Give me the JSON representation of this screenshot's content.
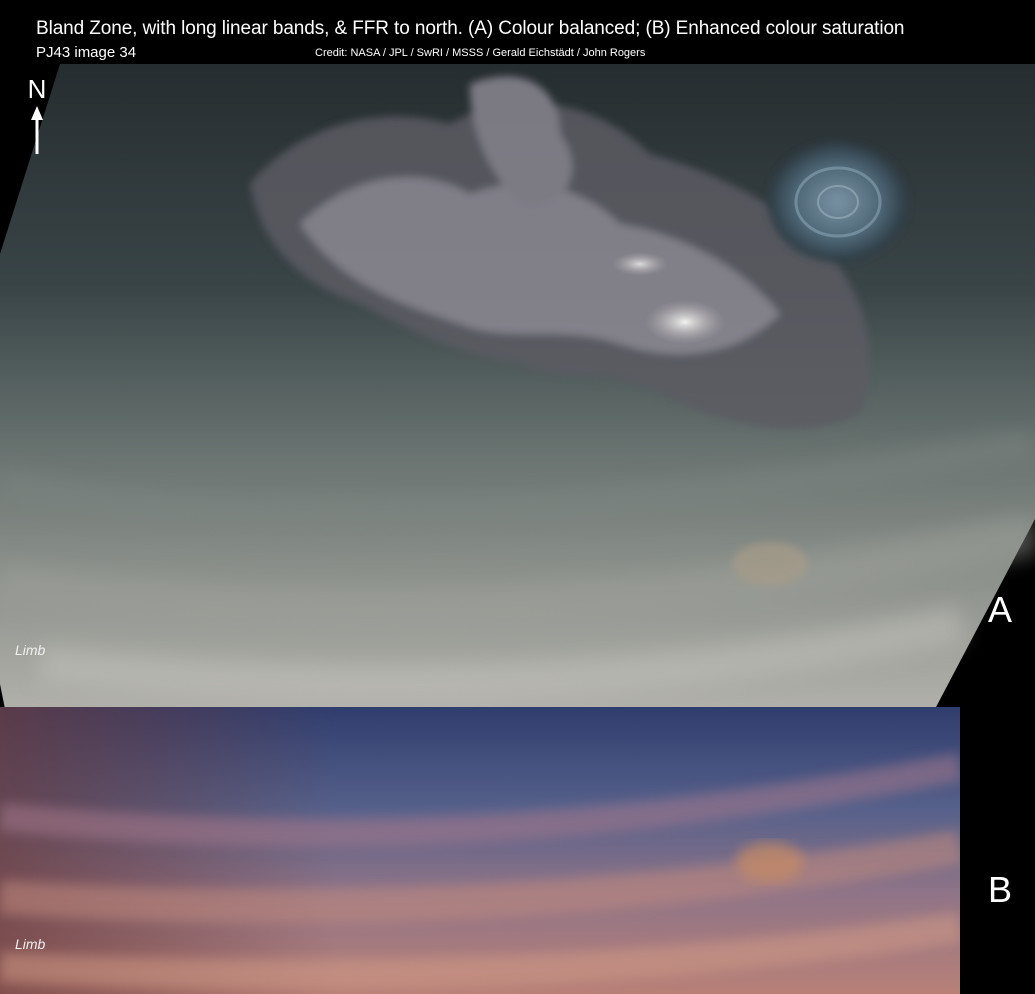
{
  "header": {
    "title": "Bland Zone, with long linear bands, & FFR to north. (A) Colour balanced; (B) Enhanced colour saturation",
    "subtitle": "PJ43 image 34",
    "credit": "Credit: NASA / JPL / SwRI / MSSS / Gerald Eichstädt / John Rogers"
  },
  "compass": {
    "label": "N",
    "icon": "north-arrow-icon"
  },
  "panels": [
    {
      "id": "A",
      "label": "A",
      "limb_label": "Limb"
    },
    {
      "id": "B",
      "label": "B",
      "limb_label": "Limb"
    }
  ],
  "colors": {
    "background": "#000000",
    "panel_a_north": "#2a3236",
    "panel_a_south": "#a9aaa6",
    "panel_b_north": "#2d3a66",
    "panel_b_south": "#b07a78",
    "text": "#ffffff"
  }
}
